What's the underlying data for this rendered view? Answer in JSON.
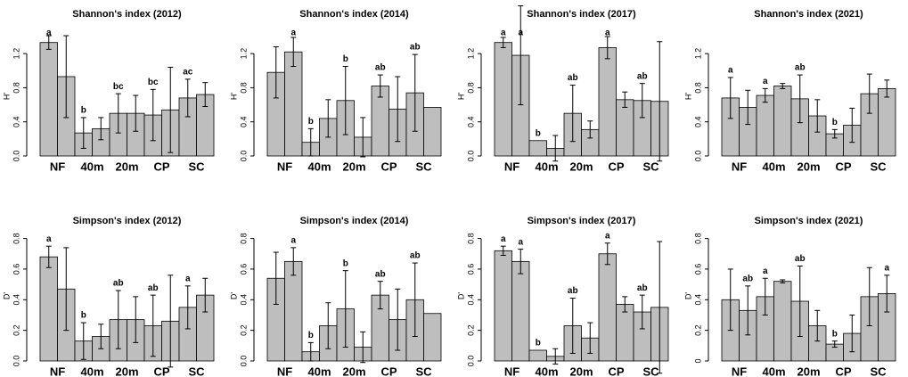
{
  "chart_data": [
    {
      "type": "bar",
      "title": "Shannon's index (2012)",
      "ylabel": "H'",
      "color": "#bebebe",
      "categories": [
        "NF",
        null,
        "40m",
        null,
        "20m",
        null,
        "CP",
        null,
        "SC",
        null
      ],
      "values": [
        1.33,
        0.93,
        0.27,
        0.32,
        0.5,
        0.5,
        0.48,
        0.54,
        0.68,
        0.72
      ],
      "errors": [
        0.08,
        0.48,
        0.18,
        0.13,
        0.23,
        0.21,
        0.3,
        0.5,
        0.22,
        0.14
      ],
      "letters": [
        "a",
        null,
        "b",
        null,
        "bc",
        null,
        "bc",
        null,
        "ac",
        null
      ],
      "ylim": [
        0,
        1.4
      ],
      "yticks": [
        {
          "value": 0,
          "label": "0.0"
        },
        0.4,
        0.8,
        1.2
      ]
    },
    {
      "type": "bar",
      "title": "Shannon's index (2014)",
      "ylabel": "H'",
      "color": "#bebebe",
      "categories": [
        "NF",
        null,
        "40m",
        null,
        "20m",
        null,
        "CP",
        null,
        "SC",
        null
      ],
      "values": [
        0.98,
        1.22,
        0.16,
        0.44,
        0.65,
        0.22,
        0.82,
        0.55,
        0.74,
        0.57
      ],
      "errors": [
        0.3,
        0.17,
        0.16,
        0.22,
        0.4,
        0.23,
        0.13,
        0.38,
        0.45,
        null
      ],
      "letters": [
        null,
        "a",
        "b",
        null,
        "b",
        null,
        "ab",
        null,
        "ab",
        null
      ],
      "ylim": [
        0,
        1.4
      ],
      "yticks": [
        {
          "value": 0,
          "label": "0.0"
        },
        0.4,
        0.8,
        1.2
      ]
    },
    {
      "type": "bar",
      "title": "Shannon's index (2017)",
      "ylabel": "H'",
      "color": "#bebebe",
      "categories": [
        "NF",
        null,
        "40m",
        null,
        "20m",
        null,
        "CP",
        null,
        "SC",
        null
      ],
      "values": [
        1.33,
        1.18,
        0.18,
        0.09,
        0.5,
        0.31,
        1.27,
        0.66,
        0.65,
        0.64
      ],
      "errors": [
        0.06,
        0.58,
        null,
        0.15,
        0.33,
        0.1,
        0.13,
        0.09,
        0.2,
        0.7
      ],
      "letters": [
        "a",
        "a",
        "b",
        null,
        "ab",
        null,
        "a",
        null,
        "ab",
        null
      ],
      "ylim": [
        0,
        1.4
      ],
      "yticks": [
        {
          "value": 0,
          "label": "0.0"
        },
        0.4,
        0.8,
        1.2
      ]
    },
    {
      "type": "bar",
      "title": "Shannon's index (2021)",
      "ylabel": "H'",
      "color": "#bebebe",
      "categories": [
        "NF",
        null,
        "40m",
        null,
        "20m",
        null,
        "CP",
        null,
        "SC",
        null
      ],
      "values": [
        0.68,
        0.57,
        0.71,
        0.82,
        0.67,
        0.47,
        0.26,
        0.36,
        0.73,
        0.79
      ],
      "errors": [
        0.24,
        0.2,
        0.08,
        0.03,
        0.28,
        0.19,
        0.05,
        0.2,
        0.23,
        0.1
      ],
      "letters": [
        "a",
        null,
        "a",
        null,
        "ab",
        null,
        "b",
        null,
        null,
        null
      ],
      "ylim": [
        0,
        1.4
      ],
      "yticks": [
        {
          "value": 0,
          "label": "0.0"
        },
        0.4,
        0.8,
        1.2
      ]
    },
    {
      "type": "bar",
      "title": "Simpson's index (2012)",
      "ylabel": "D'",
      "color": "#bebebe",
      "categories": [
        "NF",
        null,
        "40m",
        null,
        "20m",
        null,
        "CP",
        null,
        "SC",
        null
      ],
      "values": [
        0.68,
        0.47,
        0.13,
        0.16,
        0.27,
        0.27,
        0.23,
        0.26,
        0.35,
        0.43
      ],
      "errors": [
        0.07,
        0.27,
        0.12,
        0.08,
        0.19,
        0.15,
        0.2,
        0.3,
        0.14,
        0.11
      ],
      "letters": [
        "a",
        null,
        "b",
        null,
        "ab",
        null,
        "ab",
        null,
        "a",
        null
      ],
      "ylim": [
        0,
        0.85
      ],
      "yticks": [
        {
          "value": 0,
          "label": "0.0"
        },
        0.2,
        0.4,
        0.6,
        0.8
      ]
    },
    {
      "type": "bar",
      "title": "Simpson's index (2014)",
      "ylabel": "D'",
      "color": "#bebebe",
      "categories": [
        "NF",
        null,
        "40m",
        null,
        "20m",
        null,
        "CP",
        null,
        "SC",
        null
      ],
      "values": [
        0.54,
        0.65,
        0.06,
        0.23,
        0.34,
        0.09,
        0.43,
        0.27,
        0.4,
        0.31
      ],
      "errors": [
        0.17,
        0.09,
        0.06,
        0.15,
        0.25,
        0.1,
        0.09,
        0.2,
        0.24,
        null
      ],
      "letters": [
        null,
        "a",
        "b",
        null,
        "b",
        null,
        "ab",
        null,
        "ab",
        null
      ],
      "ylim": [
        0,
        0.85
      ],
      "yticks": [
        {
          "value": 0,
          "label": "0.0"
        },
        0.2,
        0.4,
        0.6,
        0.8
      ]
    },
    {
      "type": "bar",
      "title": "Simpson's index (2017)",
      "ylabel": "D'",
      "color": "#bebebe",
      "categories": [
        "NF",
        null,
        "40m",
        null,
        "20m",
        null,
        "CP",
        null,
        "SC",
        null
      ],
      "values": [
        0.72,
        0.65,
        0.07,
        0.03,
        0.23,
        0.15,
        0.7,
        0.37,
        0.32,
        0.35
      ],
      "errors": [
        0.03,
        0.08,
        null,
        0.05,
        0.18,
        0.1,
        0.07,
        0.05,
        0.11,
        0.43
      ],
      "letters": [
        "a",
        "a",
        "b",
        null,
        "ab",
        null,
        "a",
        null,
        "ab",
        null
      ],
      "ylim": [
        0,
        0.85
      ],
      "yticks": [
        {
          "value": 0,
          "label": "0.0"
        },
        0.2,
        0.4,
        0.6,
        0.8
      ]
    },
    {
      "type": "bar",
      "title": "Simpson's index (2021)",
      "ylabel": "D'",
      "color": "#bebebe",
      "categories": [
        "NF",
        null,
        "40m",
        null,
        "20m",
        null,
        "CP",
        null,
        "SC",
        null
      ],
      "values": [
        0.4,
        0.33,
        0.42,
        0.52,
        0.39,
        0.23,
        0.11,
        0.18,
        0.42,
        0.44
      ],
      "errors": [
        0.2,
        0.16,
        0.12,
        0.01,
        0.23,
        0.1,
        0.02,
        0.12,
        0.19,
        0.12
      ],
      "letters": [
        null,
        "ab",
        "a",
        null,
        "ab",
        null,
        "b",
        null,
        null,
        "a"
      ],
      "ylim": [
        0,
        0.85
      ],
      "yticks": [
        0,
        0.2,
        0.4,
        0.6,
        0.8
      ]
    }
  ]
}
